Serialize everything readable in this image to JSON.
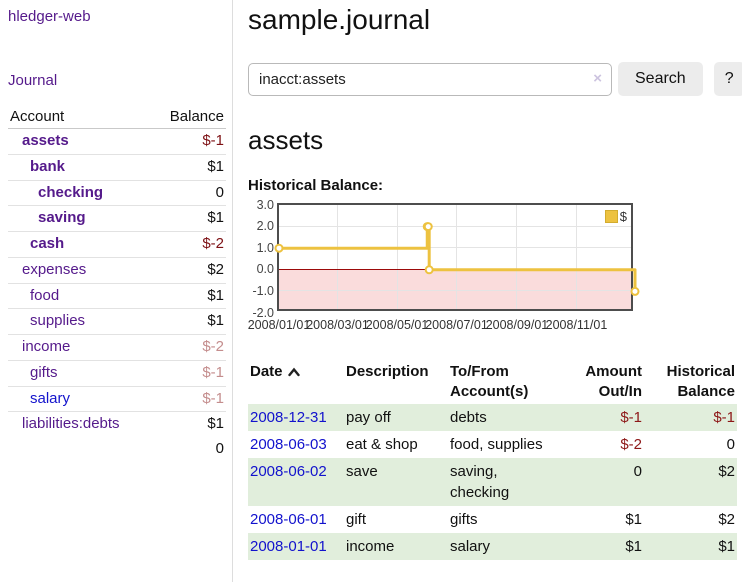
{
  "app": {
    "brand": "hledger-web"
  },
  "nav": {
    "journal": "Journal"
  },
  "sidebar": {
    "columns": {
      "account": "Account",
      "balance": "Balance"
    },
    "accounts": [
      {
        "name": "assets",
        "depth": 1,
        "balance": "$-1",
        "bold": true,
        "neg": "strong",
        "link": "purple"
      },
      {
        "name": "bank",
        "depth": 2,
        "balance": "$1",
        "bold": true,
        "neg": "none",
        "link": "purple"
      },
      {
        "name": "checking",
        "depth": 3,
        "balance": "0",
        "bold": true,
        "neg": "none",
        "link": "purple"
      },
      {
        "name": "saving",
        "depth": 3,
        "balance": "$1",
        "bold": true,
        "neg": "none",
        "link": "purple"
      },
      {
        "name": "cash",
        "depth": 2,
        "balance": "$-2",
        "bold": true,
        "neg": "strong",
        "link": "purple"
      },
      {
        "name": "expenses",
        "depth": 1,
        "balance": "$2",
        "bold": false,
        "neg": "none",
        "link": "purple"
      },
      {
        "name": "food",
        "depth": 2,
        "balance": "$1",
        "bold": false,
        "neg": "none",
        "link": "purple"
      },
      {
        "name": "supplies",
        "depth": 2,
        "balance": "$1",
        "bold": false,
        "neg": "none",
        "link": "purple"
      },
      {
        "name": "income",
        "depth": 1,
        "balance": "$-2",
        "bold": false,
        "neg": "dim",
        "link": "purple"
      },
      {
        "name": "gifts",
        "depth": 2,
        "balance": "$-1",
        "bold": false,
        "neg": "dim",
        "link": "purple"
      },
      {
        "name": "salary",
        "depth": 2,
        "balance": "$-1",
        "bold": false,
        "neg": "dim",
        "link": "blue"
      },
      {
        "name": "liabilities:debts",
        "depth": 1,
        "balance": "$1",
        "bold": false,
        "neg": "none",
        "link": "purple"
      }
    ],
    "total": "0"
  },
  "header": {
    "title": "sample.journal"
  },
  "search": {
    "value": "inacct:assets",
    "clear_icon": "×",
    "button": "Search",
    "help": "?"
  },
  "account_page": {
    "title": "assets",
    "chart_label": "Historical Balance:"
  },
  "chart_data": {
    "type": "line",
    "steps": true,
    "title": "Historical Balance",
    "series": [
      {
        "name": "$",
        "points": [
          [
            "2008-01-01",
            1
          ],
          [
            "2008-06-01",
            2
          ],
          [
            "2008-06-02",
            2
          ],
          [
            "2008-06-03",
            0
          ],
          [
            "2008-12-31",
            -1
          ]
        ]
      }
    ],
    "xrange": [
      "2008-01-01",
      "2008-12-31"
    ],
    "ylim": [
      -2,
      3
    ],
    "yticks": [
      3.0,
      2.0,
      1.0,
      0.0,
      -1.0,
      -2.0
    ],
    "ytick_labels": [
      "3.0",
      "2.0",
      "1.0",
      "0.0",
      "-1.0",
      "-2.0"
    ],
    "xticks": [
      "2008/01/01",
      "2008/03/01",
      "2008/05/01",
      "2008/07/01",
      "2008/09/01",
      "2008/11/01"
    ],
    "legend_position": "top-right",
    "grid": true,
    "colors": {
      "line": "#edc240",
      "point_fill": "#ffffff",
      "negative_region": "#fadcdc",
      "zero_line": "#9c0a0a",
      "grid": "#e4e4e4",
      "border": "#4d4d4d"
    }
  },
  "register": {
    "columns": {
      "date": "Date",
      "description": "Description",
      "accounts": "To/From Account(s)",
      "amount": "Amount Out/In",
      "balance": "Historical Balance"
    },
    "rows": [
      {
        "date": "2008-12-31",
        "description": "pay off",
        "accounts": "debts",
        "amount": "$-1",
        "amount_neg": true,
        "balance": "$-1",
        "balance_neg": true,
        "green": true
      },
      {
        "date": "2008-06-03",
        "description": "eat & shop",
        "accounts": "food, supplies",
        "amount": "$-2",
        "amount_neg": true,
        "balance": "0",
        "balance_neg": false,
        "green": false
      },
      {
        "date": "2008-06-02",
        "description": "save",
        "accounts": "saving, checking",
        "amount": "0",
        "amount_neg": false,
        "balance": "$2",
        "balance_neg": false,
        "green": true
      },
      {
        "date": "2008-06-01",
        "description": "gift",
        "accounts": "gifts",
        "amount": "$1",
        "amount_neg": false,
        "balance": "$2",
        "balance_neg": false,
        "green": false
      },
      {
        "date": "2008-01-01",
        "description": "income",
        "accounts": "salary",
        "amount": "$1",
        "amount_neg": false,
        "balance": "$1",
        "balance_neg": false,
        "green": true
      }
    ]
  }
}
